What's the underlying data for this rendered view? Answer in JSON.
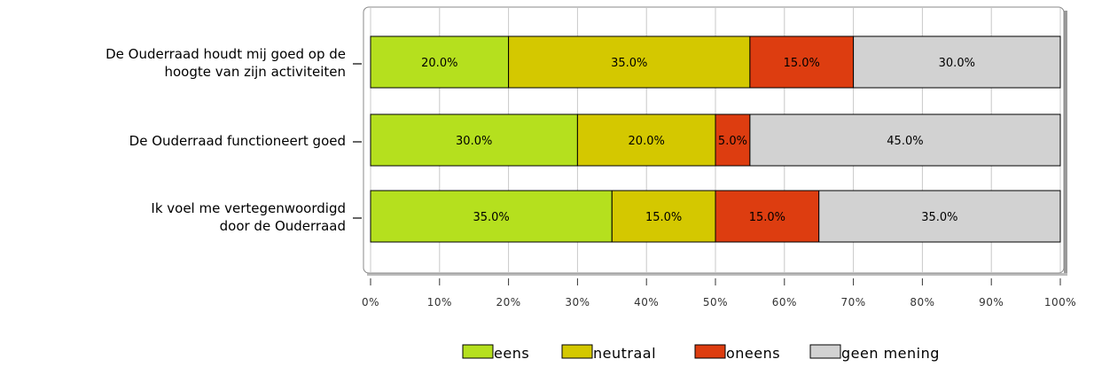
{
  "chart_data": {
    "type": "bar",
    "orientation": "horizontal",
    "stacked": true,
    "categories": [
      [
        "De Ouderraad houdt mij goed op de",
        "hoogte van zijn activiteiten"
      ],
      [
        "De Ouderraad functioneert goed"
      ],
      [
        "Ik voel me vertegenwoordigd",
        "door de Ouderraad"
      ]
    ],
    "series": [
      {
        "name": "eens",
        "color": "#b5e01e",
        "values": [
          20,
          30,
          35
        ]
      },
      {
        "name": "neutraal",
        "color": "#d4c800",
        "values": [
          35,
          20,
          15
        ]
      },
      {
        "name": "oneens",
        "color": "#dd3d10",
        "values": [
          15,
          5,
          15
        ]
      },
      {
        "name": "geen mening",
        "color": "#d2d2d2",
        "values": [
          30,
          45,
          35
        ]
      }
    ],
    "value_labels": [
      [
        "20.0%",
        "30.0%",
        "35.0%"
      ],
      [
        "35.0%",
        "20.0%",
        "15.0%"
      ],
      [
        "15.0%",
        "5.0%",
        "15.0%"
      ],
      [
        "30.0%",
        "45.0%",
        "35.0%"
      ]
    ],
    "xlim": [
      0,
      100
    ],
    "xticks": [
      0,
      10,
      20,
      30,
      40,
      50,
      60,
      70,
      80,
      90,
      100
    ],
    "xtick_labels": [
      "0%",
      "10%",
      "20%",
      "30%",
      "40%",
      "50%",
      "60%",
      "70%",
      "80%",
      "90%",
      "100%"
    ],
    "grid": true,
    "legend_position": "bottom",
    "title": "",
    "xlabel": "",
    "ylabel": ""
  }
}
